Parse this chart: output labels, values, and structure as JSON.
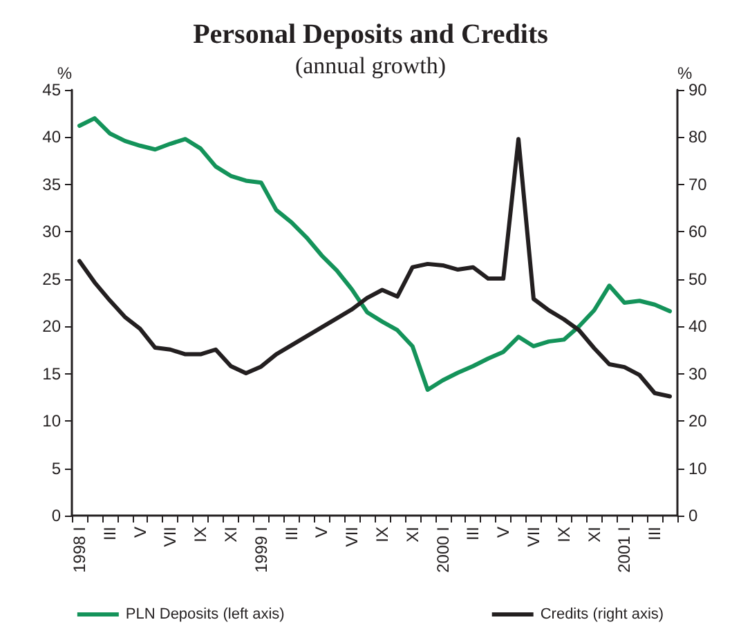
{
  "chart_data": {
    "type": "line",
    "title": "Personal Deposits and Credits",
    "subtitle": "(annual growth)",
    "ylabel": "%",
    "y2label": "%",
    "categories": [
      "1998 I",
      null,
      "III",
      null,
      "V",
      null,
      "VII",
      null,
      "IX",
      null,
      "XI",
      null,
      "1999 I",
      null,
      "III",
      null,
      "V",
      null,
      "VII",
      null,
      "IX",
      null,
      "XI",
      null,
      "2000 I",
      null,
      "III",
      null,
      "V",
      null,
      "VII",
      null,
      "IX",
      null,
      "XI",
      null,
      "2001 I",
      null,
      "III",
      null
    ],
    "series": [
      {
        "name": "PLN Deposits (left axis)",
        "color": "#14935a",
        "values": [
          41.2,
          42.0,
          40.4,
          39.6,
          39.1,
          38.7,
          39.3,
          39.8,
          38.8,
          36.9,
          35.9,
          35.4,
          35.2,
          32.3,
          31.0,
          29.4,
          27.5,
          25.9,
          23.9,
          21.5,
          20.5,
          19.6,
          17.9,
          13.3,
          14.3,
          15.1,
          15.8,
          16.6,
          17.3,
          18.9,
          17.9,
          18.4,
          18.6,
          20.0,
          21.7,
          24.3,
          22.5,
          22.7,
          22.3,
          21.6
        ]
      },
      {
        "name": "Credits (right axis)",
        "color": "#231f20",
        "axis": "y2",
        "values": [
          53.8,
          49.3,
          45.5,
          42.0,
          39.5,
          35.5,
          35.1,
          34.1,
          34.1,
          35.1,
          31.6,
          30.1,
          31.5,
          34.1,
          36.0,
          37.9,
          39.8,
          41.7,
          43.6,
          46.0,
          47.7,
          46.3,
          52.5,
          53.2,
          52.9,
          52.0,
          52.5,
          50.1,
          50.1,
          79.6,
          45.8,
          43.4,
          41.5,
          39.2,
          35.4,
          32.0,
          31.4,
          29.7,
          25.9,
          25.2
        ]
      }
    ],
    "ylim": [
      0,
      45
    ],
    "yticks": [
      0,
      5,
      10,
      15,
      20,
      25,
      30,
      35,
      40,
      45
    ],
    "y2lim": [
      0,
      90
    ],
    "y2ticks": [
      0,
      10,
      20,
      30,
      40,
      50,
      60,
      70,
      80,
      90
    ],
    "grid": false,
    "legend": "bottom",
    "marker": "none",
    "line_style": "solid"
  }
}
